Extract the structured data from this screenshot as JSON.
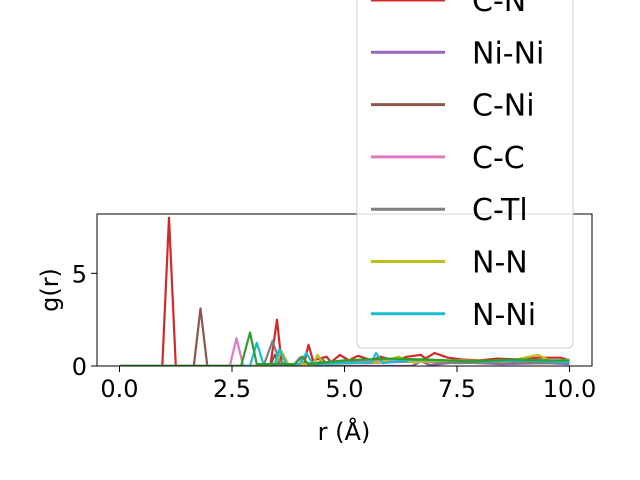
{
  "chart_data": {
    "type": "line",
    "xlabel": "r (Å)",
    "ylabel": "g(r)",
    "xlim": [
      -0.5,
      10.5
    ],
    "ylim": [
      0,
      8.2
    ],
    "xticks": [
      0.0,
      2.5,
      5.0,
      7.5,
      10.0
    ],
    "xtick_labels": [
      "0.0",
      "2.5",
      "5.0",
      "7.5",
      "10.0"
    ],
    "yticks": [
      0,
      5
    ],
    "ytick_labels": [
      "0",
      "5"
    ],
    "grid": false,
    "legend_position": "upper-right",
    "series": [
      {
        "name": "C-N",
        "color": "#d62728",
        "points": [
          [
            0,
            0
          ],
          [
            0.95,
            0
          ],
          [
            1.1,
            8.0
          ],
          [
            1.25,
            0
          ],
          [
            3.35,
            0
          ],
          [
            3.5,
            2.5
          ],
          [
            3.6,
            0.2
          ],
          [
            3.7,
            0.05
          ],
          [
            4.1,
            0.1
          ],
          [
            4.2,
            1.15
          ],
          [
            4.3,
            0.3
          ],
          [
            4.6,
            0.5
          ],
          [
            4.7,
            0.2
          ],
          [
            4.9,
            0.6
          ],
          [
            5.1,
            0.3
          ],
          [
            5.3,
            0.55
          ],
          [
            5.6,
            0.3
          ],
          [
            5.8,
            0.5
          ],
          [
            6.1,
            0.3
          ],
          [
            6.4,
            0.5
          ],
          [
            6.7,
            0.6
          ],
          [
            6.8,
            0.4
          ],
          [
            7.0,
            0.7
          ],
          [
            7.3,
            0.45
          ],
          [
            7.6,
            0.35
          ],
          [
            8.0,
            0.3
          ],
          [
            8.4,
            0.4
          ],
          [
            8.9,
            0.35
          ],
          [
            9.3,
            0.45
          ],
          [
            9.8,
            0.45
          ],
          [
            10.0,
            0.3
          ]
        ]
      },
      {
        "name": "Ni-Ni",
        "color": "#9467bd",
        "points": [
          [
            0,
            0
          ],
          [
            6.5,
            0
          ],
          [
            6.7,
            0.25
          ],
          [
            6.9,
            0.05
          ],
          [
            7.5,
            0.2
          ],
          [
            8.5,
            0.1
          ],
          [
            9.5,
            0.15
          ],
          [
            10.0,
            0.1
          ]
        ]
      },
      {
        "name": "C-Ni",
        "color": "#8c564b",
        "points": [
          [
            0,
            0
          ],
          [
            1.65,
            0
          ],
          [
            1.8,
            3.1
          ],
          [
            1.95,
            0
          ],
          [
            3.35,
            0
          ],
          [
            3.45,
            0.6
          ],
          [
            3.55,
            0.1
          ],
          [
            4.4,
            0
          ],
          [
            4.5,
            0.4
          ],
          [
            4.6,
            0.1
          ],
          [
            5.5,
            0.3
          ],
          [
            6.3,
            0.25
          ],
          [
            7.2,
            0.2
          ],
          [
            8.2,
            0.3
          ],
          [
            9.0,
            0.2
          ],
          [
            10.0,
            0.25
          ]
        ]
      },
      {
        "name": "C-C",
        "color": "#e377c2",
        "points": [
          [
            0,
            0
          ],
          [
            2.45,
            0
          ],
          [
            2.6,
            1.5
          ],
          [
            2.75,
            0
          ],
          [
            3.85,
            0
          ],
          [
            4.0,
            0.45
          ],
          [
            4.1,
            0.05
          ],
          [
            5.2,
            0.3
          ],
          [
            6.1,
            0.3
          ],
          [
            7.0,
            0.25
          ],
          [
            8.0,
            0.2
          ],
          [
            9.0,
            0.3
          ],
          [
            10.0,
            0.2
          ]
        ]
      },
      {
        "name": "C-Tl",
        "color": "#7f7f7f",
        "points": [
          [
            0,
            0
          ],
          [
            3.2,
            0
          ],
          [
            3.4,
            1.35
          ],
          [
            3.55,
            0.3
          ],
          [
            3.7,
            0.05
          ],
          [
            4.5,
            0.2
          ],
          [
            5.5,
            0.15
          ],
          [
            6.5,
            0.25
          ],
          [
            7.5,
            0.15
          ],
          [
            8.5,
            0.2
          ],
          [
            9.5,
            0.15
          ],
          [
            10.0,
            0.2
          ]
        ]
      },
      {
        "name": "N-N",
        "color": "#bcbd22",
        "points": [
          [
            0,
            0
          ],
          [
            3.45,
            0
          ],
          [
            3.6,
            0.8
          ],
          [
            3.75,
            0.1
          ],
          [
            4.3,
            0.1
          ],
          [
            4.4,
            0.6
          ],
          [
            4.55,
            0.1
          ],
          [
            5.8,
            0.2
          ],
          [
            6.2,
            0.5
          ],
          [
            6.5,
            0.2
          ],
          [
            7.5,
            0.3
          ],
          [
            8.6,
            0.25
          ],
          [
            9.3,
            0.6
          ],
          [
            9.6,
            0.25
          ],
          [
            10.0,
            0.35
          ]
        ]
      },
      {
        "name": "N-Ni",
        "color": "#17becf",
        "points": [
          [
            0,
            0
          ],
          [
            2.9,
            0
          ],
          [
            3.05,
            1.25
          ],
          [
            3.2,
            0.1
          ],
          [
            3.45,
            0.1
          ],
          [
            3.55,
            0.9
          ],
          [
            3.7,
            0.1
          ],
          [
            4.0,
            0.1
          ],
          [
            4.15,
            0.7
          ],
          [
            4.3,
            0.1
          ],
          [
            5.6,
            0.2
          ],
          [
            5.7,
            0.7
          ],
          [
            5.85,
            0.15
          ],
          [
            6.5,
            0.35
          ],
          [
            7.2,
            0.3
          ],
          [
            8.0,
            0.25
          ],
          [
            9.0,
            0.3
          ],
          [
            10.0,
            0.2
          ]
        ]
      },
      {
        "name": "",
        "color": "#2ca02c",
        "points": [
          [
            0,
            0
          ],
          [
            2.7,
            0
          ],
          [
            2.9,
            1.8
          ],
          [
            3.05,
            0.1
          ],
          [
            3.9,
            0.1
          ],
          [
            4.05,
            0.5
          ],
          [
            4.2,
            0.1
          ],
          [
            5.0,
            0.3
          ],
          [
            6.0,
            0.4
          ],
          [
            6.8,
            0.35
          ],
          [
            7.8,
            0.25
          ],
          [
            8.8,
            0.35
          ],
          [
            9.5,
            0.3
          ],
          [
            10.0,
            0.3
          ]
        ]
      }
    ],
    "legend": [
      "C-N",
      "Ni-Ni",
      "C-Ni",
      "C-C",
      "C-Tl",
      "N-N",
      "N-Ni"
    ]
  }
}
